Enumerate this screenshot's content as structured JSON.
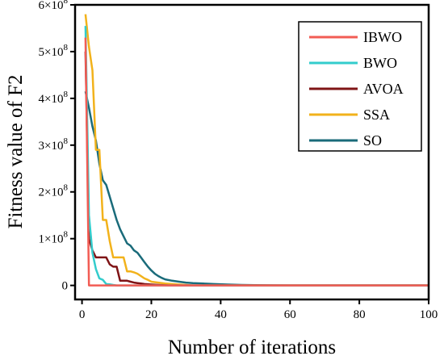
{
  "chart_data": {
    "type": "line",
    "title": "",
    "xlabel": "Number of iterations",
    "ylabel": "Fitness value of F2",
    "xlim": [
      -2,
      100
    ],
    "ylim": [
      -30000000.0,
      600000000.0
    ],
    "x_ticks": [
      0,
      20,
      40,
      60,
      80,
      100
    ],
    "x_tick_labels": [
      "0",
      "20",
      "40",
      "60",
      "80",
      "100"
    ],
    "y_ticks": [
      0,
      100000000.0,
      200000000.0,
      300000000.0,
      400000000.0,
      500000000.0,
      600000000.0
    ],
    "y_tick_labels": [
      {
        "mant": "0",
        "exp": ""
      },
      {
        "mant": "1×10",
        "exp": "8"
      },
      {
        "mant": "2×10",
        "exp": "8"
      },
      {
        "mant": "3×10",
        "exp": "8"
      },
      {
        "mant": "4×10",
        "exp": "8"
      },
      {
        "mant": "5×10",
        "exp": "8"
      },
      {
        "mant": "6×10",
        "exp": "8"
      }
    ],
    "legend_position": "top-right",
    "grid": false,
    "series": [
      {
        "name": "IBWO",
        "color": "#f25c54",
        "x": [
          1,
          2,
          3,
          100
        ],
        "y": [
          530000000,
          0,
          0,
          0
        ]
      },
      {
        "name": "BWO",
        "color": "#33cccc",
        "x": [
          1,
          2,
          3,
          4,
          5,
          6,
          7,
          8,
          9,
          10,
          100
        ],
        "y": [
          555000000,
          150000000,
          70000000,
          35000000,
          15000000,
          12000000,
          3000000,
          2500000,
          1000000,
          0,
          0
        ]
      },
      {
        "name": "AVOA",
        "color": "#7f1416",
        "x": [
          1,
          2,
          3,
          4,
          5,
          6,
          7,
          8,
          9,
          10,
          11,
          12,
          13,
          14,
          15,
          16,
          17,
          18,
          20,
          22,
          25,
          100
        ],
        "y": [
          500000000,
          100000000,
          75000000,
          60000000,
          60000000,
          60000000,
          60000000,
          45000000,
          40000000,
          40000000,
          10000000,
          10000000,
          10000000,
          8000000,
          6000000,
          5000000,
          4000000,
          3000000,
          2000000,
          1000000,
          0,
          0
        ]
      },
      {
        "name": "SSA",
        "color": "#f2b21b",
        "x": [
          1,
          2,
          3,
          4,
          5,
          6,
          7,
          8,
          9,
          10,
          11,
          12,
          13,
          14,
          15,
          16,
          17,
          18,
          19,
          20,
          22,
          24,
          26,
          28,
          30,
          32,
          100
        ],
        "y": [
          580000000,
          510000000,
          460000000,
          290000000,
          290000000,
          140000000,
          140000000,
          95000000,
          60000000,
          60000000,
          60000000,
          60000000,
          30000000,
          30000000,
          28000000,
          25000000,
          20000000,
          15000000,
          12000000,
          8000000,
          6000000,
          4000000,
          3000000,
          2000000,
          1000000,
          0,
          0
        ]
      },
      {
        "name": "SO",
        "color": "#1a6b7a",
        "x": [
          1,
          2,
          3,
          4,
          5,
          6,
          7,
          8,
          9,
          10,
          11,
          12,
          13,
          14,
          15,
          16,
          17,
          18,
          19,
          20,
          21,
          22,
          23,
          24,
          26,
          28,
          30,
          32,
          35,
          38,
          42,
          46,
          50,
          55,
          60,
          100
        ],
        "y": [
          415000000,
          380000000,
          340000000,
          310000000,
          260000000,
          225000000,
          215000000,
          190000000,
          165000000,
          140000000,
          120000000,
          105000000,
          90000000,
          85000000,
          75000000,
          70000000,
          60000000,
          50000000,
          40000000,
          32000000,
          25000000,
          20000000,
          16000000,
          13000000,
          10000000,
          8000000,
          6000000,
          5000000,
          4000000,
          3000000,
          2000000,
          1000000,
          500000,
          200000,
          0,
          0
        ]
      }
    ]
  }
}
